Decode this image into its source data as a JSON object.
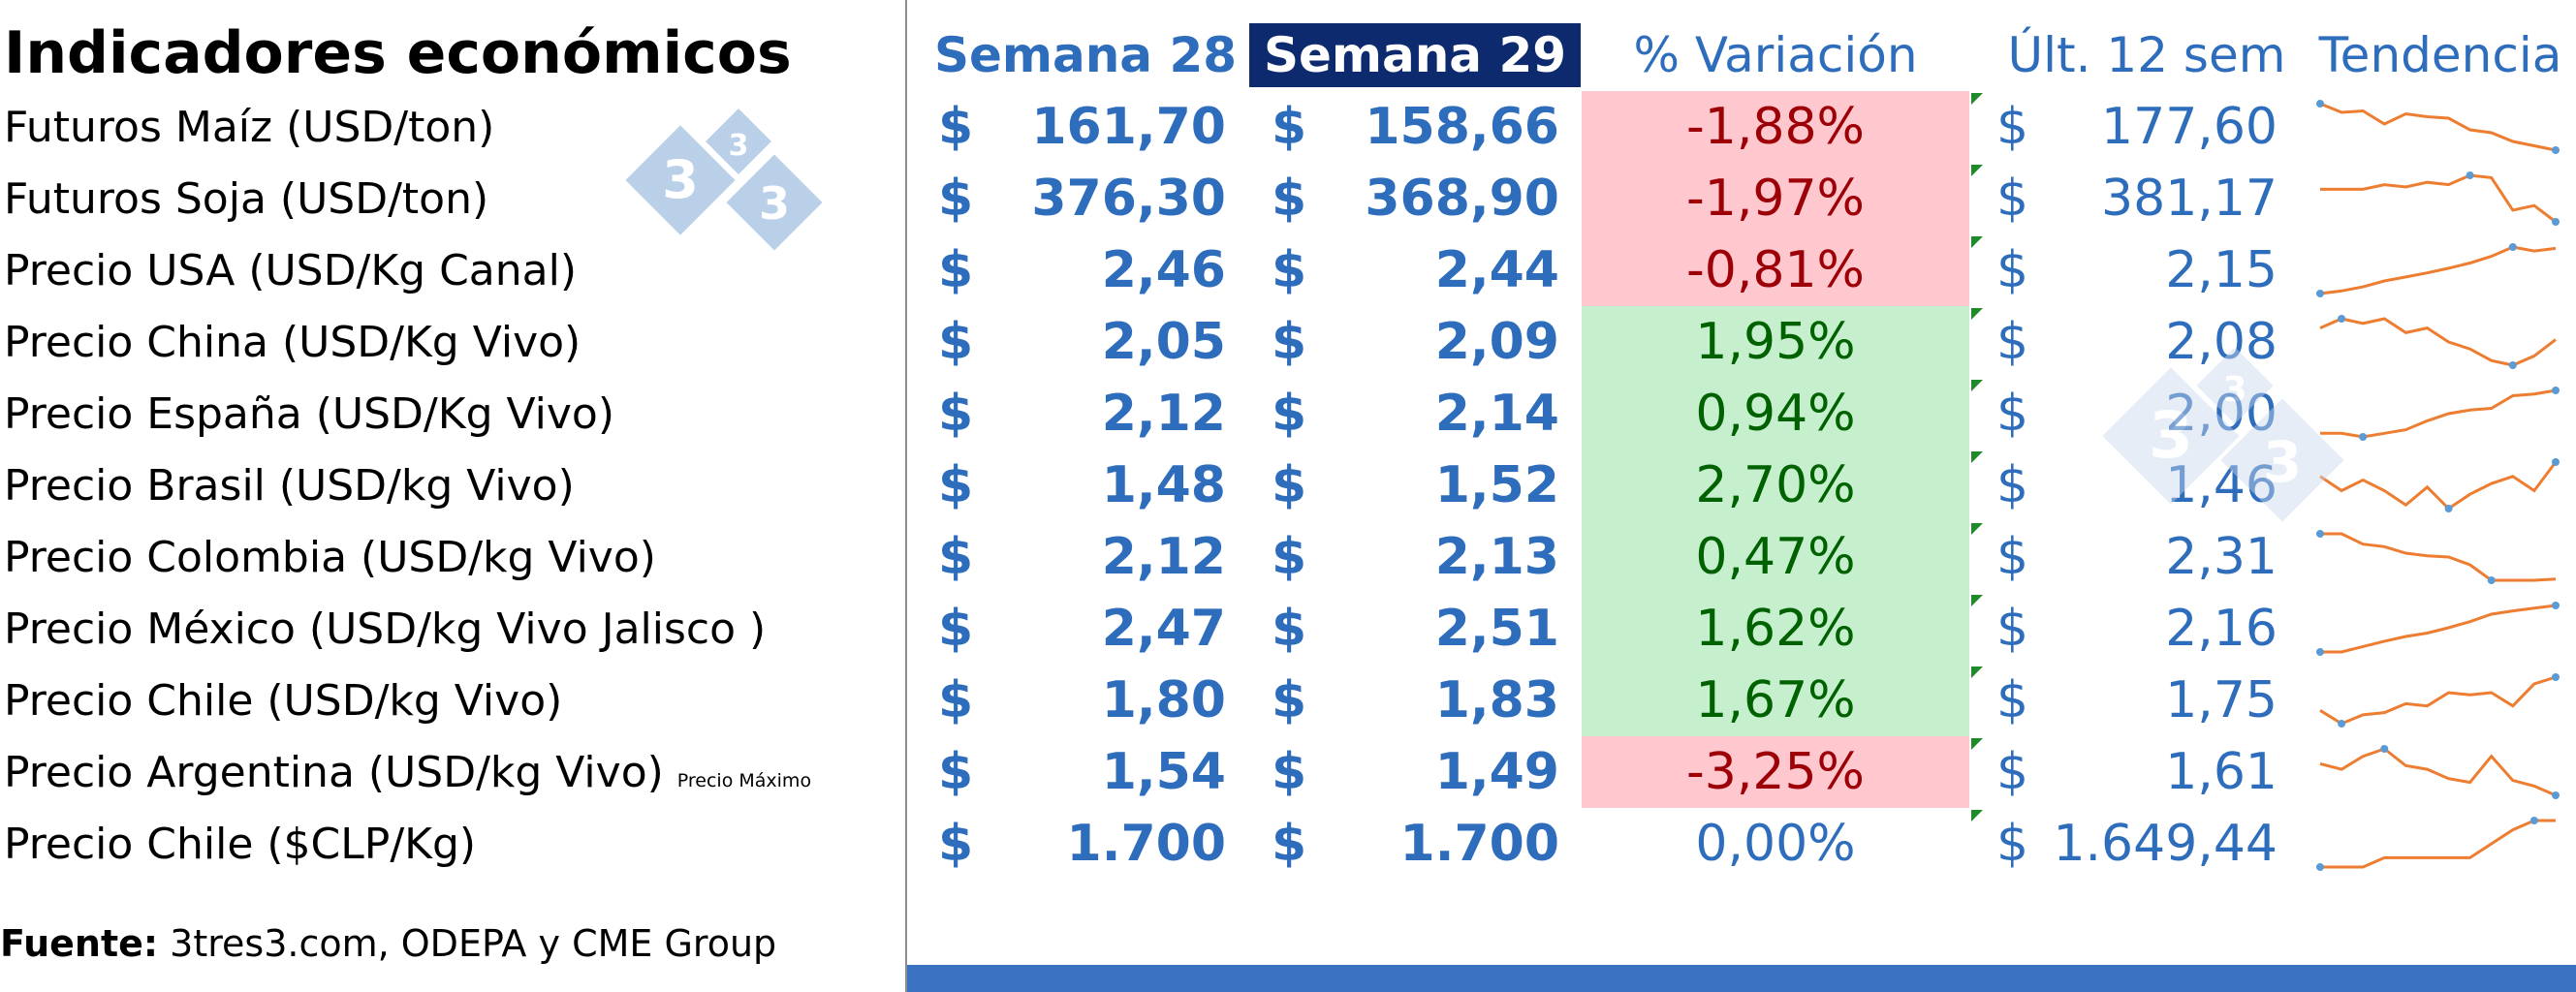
{
  "title": "Indicadores económicos",
  "headers": {
    "week_prev": "Semana 28",
    "week_curr": "Semana 29",
    "variation": "% Variación",
    "last12": "Últ. 12 sem",
    "trend": "Tendencia"
  },
  "currency_symbol": "$",
  "colors": {
    "text_blue": "#2e6dbc",
    "header_active_bg": "#0d2a6e",
    "negative_bg": "#ffc7ce",
    "negative_text": "#9c0006",
    "positive_bg": "#c6efce",
    "positive_text": "#006100",
    "sparkline": "#ed7d31",
    "sparkline_marker": "#5b9bd5",
    "bottom_bar": "#3c72c2"
  },
  "rows": [
    {
      "label": "Futuros Maíz (USD/ton)",
      "w28": "161,70",
      "w29": "158,66",
      "variation": "-1,88%",
      "status": "negative",
      "last12": "177,60",
      "trend": [
        190,
        184,
        185,
        176,
        183,
        181,
        180,
        172,
        170,
        164,
        161,
        158
      ]
    },
    {
      "label": "Futuros Soja (USD/ton)",
      "w28": "376,30",
      "w29": "368,90",
      "variation": "-1,97%",
      "status": "negative",
      "last12": "381,17",
      "trend": [
        383,
        383,
        383,
        385,
        384,
        386,
        385,
        389,
        388,
        374,
        376,
        369
      ]
    },
    {
      "label": "Precio USA (USD/Kg Canal)",
      "w28": "2,46",
      "w29": "2,44",
      "variation": "-0,81%",
      "status": "negative",
      "last12": "2,15",
      "trend": [
        1.76,
        1.8,
        1.86,
        1.95,
        2.01,
        2.07,
        2.14,
        2.22,
        2.32,
        2.46,
        2.4,
        2.44
      ]
    },
    {
      "label": "Precio China (USD/Kg Vivo)",
      "w28": "2,05",
      "w29": "2,09",
      "variation": "1,95%",
      "status": "positive",
      "last12": "2,08",
      "trend": [
        2.14,
        2.18,
        2.16,
        2.18,
        2.12,
        2.14,
        2.08,
        2.05,
        2.0,
        1.98,
        2.02,
        2.09
      ]
    },
    {
      "label": "Precio España (USD/Kg Vivo)",
      "w28": "2,12",
      "w29": "2,14",
      "variation": "0,94%",
      "status": "positive",
      "last12": "2,00",
      "trend": [
        1.9,
        1.9,
        1.88,
        1.9,
        1.92,
        1.97,
        2.01,
        2.03,
        2.04,
        2.11,
        2.12,
        2.14
      ]
    },
    {
      "label": "Precio  Brasil (USD/kg Vivo)",
      "w28": "1,48",
      "w29": "1,52",
      "variation": "2,70%",
      "status": "positive",
      "last12": "1,46",
      "trend": [
        1.48,
        1.44,
        1.47,
        1.44,
        1.4,
        1.45,
        1.39,
        1.43,
        1.46,
        1.48,
        1.44,
        1.52
      ]
    },
    {
      "label": "Precio Colombia (USD/kg Vivo)",
      "w28": "2,12",
      "w29": "2,13",
      "variation": "0,47%",
      "status": "positive",
      "last12": "2,31",
      "trend": [
        2.48,
        2.48,
        2.4,
        2.38,
        2.33,
        2.31,
        2.3,
        2.24,
        2.12,
        2.12,
        2.12,
        2.13
      ]
    },
    {
      "label": "Precio México (USD/kg Vivo Jalisco )",
      "w28": "2,47",
      "w29": "2,51",
      "variation": "1,62%",
      "status": "positive",
      "last12": "2,16",
      "trend": [
        1.82,
        1.82,
        1.9,
        1.98,
        2.05,
        2.1,
        2.18,
        2.27,
        2.38,
        2.43,
        2.47,
        2.51
      ]
    },
    {
      "label": "Precio Chile (USD/kg Vivo)",
      "w28": "1,80",
      "w29": "1,83",
      "variation": "1,67%",
      "status": "positive",
      "last12": "1,75",
      "trend": [
        1.68,
        1.62,
        1.66,
        1.67,
        1.71,
        1.7,
        1.76,
        1.75,
        1.76,
        1.7,
        1.8,
        1.83
      ]
    },
    {
      "label": "Precio Argentina (USD/kg Vivo)",
      "note": "Precio Máximo",
      "w28": "1,54",
      "w29": "1,49",
      "variation": "-3,25%",
      "status": "negative",
      "last12": "1,61",
      "trend": [
        1.66,
        1.63,
        1.7,
        1.74,
        1.65,
        1.63,
        1.58,
        1.56,
        1.7,
        1.57,
        1.54,
        1.49
      ]
    },
    {
      "label": "Precio Chile ($CLP/Kg)",
      "w28": "1.700",
      "w29": "1.700",
      "variation": "0,00%",
      "status": "neutral",
      "last12": "1.649,44",
      "trend": [
        1600,
        1600,
        1600,
        1620,
        1620,
        1620,
        1620,
        1620,
        1650,
        1680,
        1700,
        1700
      ]
    }
  ],
  "source": {
    "label": "Fuente:",
    "text": " 3tres3.com, ODEPA y CME Group"
  },
  "logo": {
    "icon": "3tres3-logo",
    "digit": "3"
  }
}
